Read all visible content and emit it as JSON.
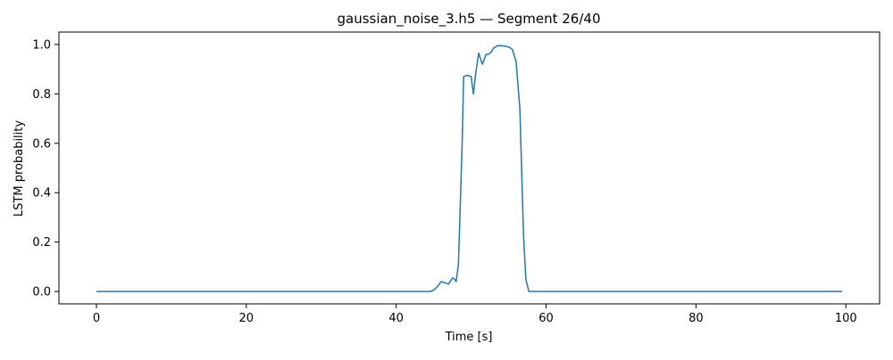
{
  "chart_data": {
    "type": "line",
    "title": "gaussian_noise_3.h5 — Segment 26/40",
    "xlabel": "Time [s]",
    "ylabel": "LSTM probability",
    "xlim": [
      -5,
      104.5
    ],
    "ylim": [
      -0.05,
      1.05
    ],
    "xticks": [
      "0",
      "20",
      "40",
      "60",
      "80",
      "100"
    ],
    "yticks": [
      "0.0",
      "0.2",
      "0.4",
      "0.6",
      "0.8",
      "1.0"
    ],
    "grid": false,
    "colors": {
      "line": "#1f77b4"
    },
    "series": [
      {
        "x": [
          0,
          44.5,
          45,
          45.5,
          46,
          46.5,
          47,
          47.5,
          47.8,
          48,
          48.3,
          48.5,
          48.8,
          49,
          49.5,
          50,
          50.3,
          50.6,
          51,
          51.5,
          52,
          52.3,
          52.7,
          53,
          53.5,
          54,
          54.5,
          55,
          55.5,
          56,
          56.5,
          57,
          57.3,
          57.7,
          58,
          99.5
        ],
        "y": [
          0.0,
          0.0,
          0.005,
          0.02,
          0.04,
          0.035,
          0.03,
          0.055,
          0.05,
          0.04,
          0.11,
          0.3,
          0.6,
          0.87,
          0.875,
          0.87,
          0.8,
          0.88,
          0.965,
          0.92,
          0.96,
          0.96,
          0.97,
          0.985,
          0.995,
          0.995,
          0.993,
          0.99,
          0.98,
          0.93,
          0.74,
          0.22,
          0.05,
          0.0,
          0.0,
          0.0
        ]
      }
    ]
  }
}
